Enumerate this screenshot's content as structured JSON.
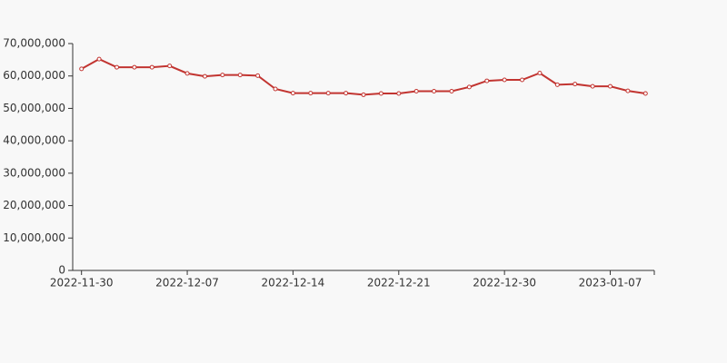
{
  "chart_data": {
    "type": "line",
    "categories": [
      "2022-11-30",
      null,
      null,
      null,
      null,
      null,
      "2022-12-07",
      null,
      null,
      null,
      null,
      null,
      "2022-12-14",
      null,
      null,
      null,
      null,
      null,
      "2022-12-21",
      null,
      null,
      null,
      null,
      null,
      "2022-12-30",
      null,
      null,
      null,
      null,
      null,
      "2023-01-07",
      null,
      null
    ],
    "series": [
      {
        "color": "#c23531",
        "values": [
          62200000,
          65200000,
          62700000,
          62700000,
          62700000,
          63100000,
          60800000,
          59900000,
          60300000,
          60300000,
          60100000,
          56000000,
          54700000,
          54700000,
          54700000,
          54700000,
          54200000,
          54600000,
          54600000,
          55300000,
          55300000,
          55300000,
          56600000,
          58500000,
          58800000,
          58800000,
          60900000,
          57300000,
          57500000,
          56800000,
          56800000,
          55400000,
          54600000
        ]
      }
    ],
    "ylim": [
      0,
      70000000
    ],
    "yticks": [
      0,
      {
        "value": 10000000,
        "label": "10,000,000"
      },
      {
        "value": 20000000,
        "label": "20,000,000"
      },
      {
        "value": 30000000,
        "label": "30,000,000"
      },
      {
        "value": 40000000,
        "label": "40,000,000"
      },
      {
        "value": 50000000,
        "label": "50,000,000"
      },
      {
        "value": 60000000,
        "label": "60,000,000"
      },
      {
        "value": 70000000,
        "label": "70,000,000"
      }
    ]
  }
}
